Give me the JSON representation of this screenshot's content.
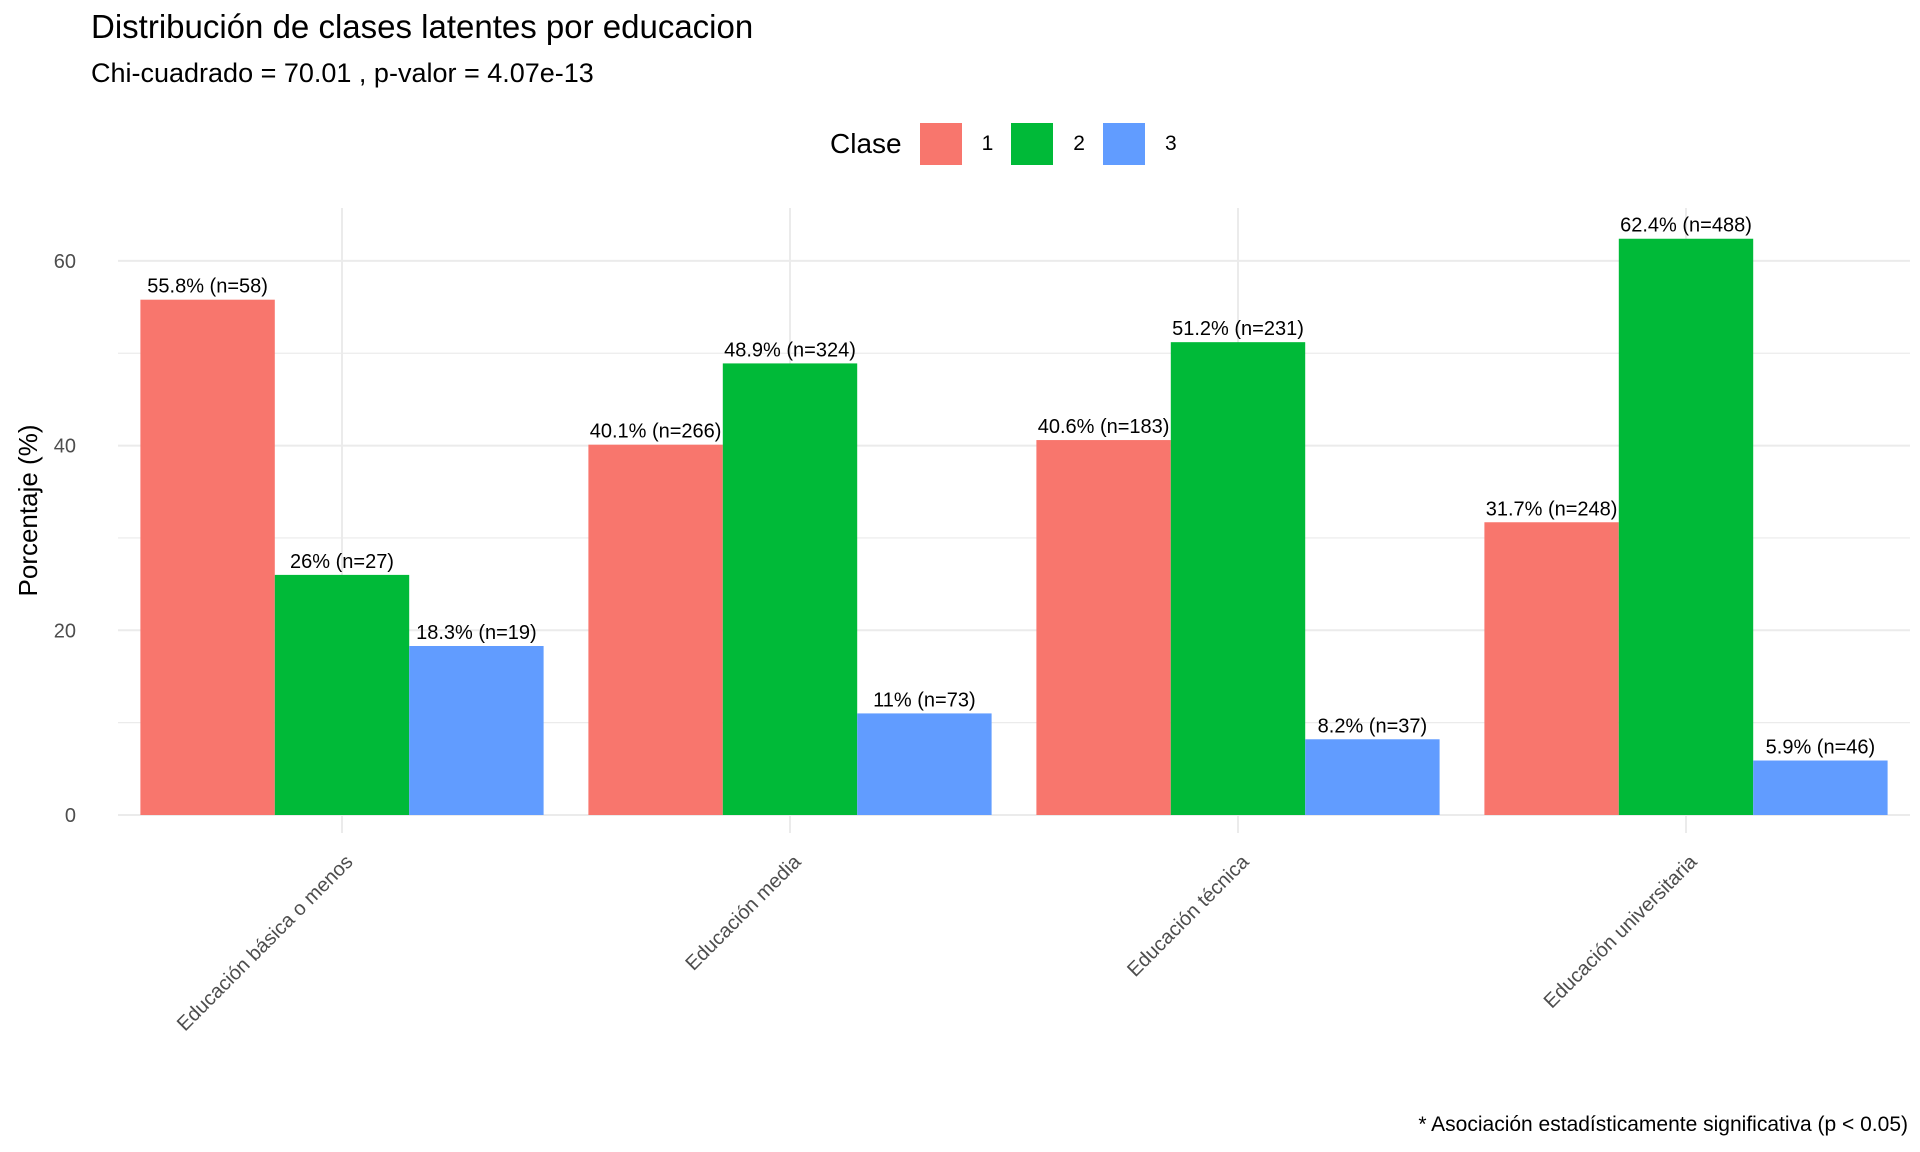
{
  "chart_data": {
    "type": "bar",
    "title": "Distribución de clases latentes por educacion",
    "subtitle": "Chi-cuadrado = 70.01 , p-valor = 4.07e-13",
    "xlabel": "",
    "ylabel": "Porcentaje (%)",
    "ylim": [
      0,
      65
    ],
    "yticks": [
      0,
      20,
      40,
      60
    ],
    "grid": true,
    "legend_title": "Clase",
    "legend_position": "top",
    "categories": [
      "Educación básica o menos",
      "Educación media",
      "Educación técnica",
      "Educación universitaria"
    ],
    "series": [
      {
        "name": "1",
        "color": "#F8766D",
        "values": [
          55.8,
          40.1,
          40.6,
          31.7
        ],
        "labels": [
          "55.8% (n=58)",
          "40.1% (n=266)",
          "40.6% (n=183)",
          "31.7% (n=248)"
        ]
      },
      {
        "name": "2",
        "color": "#00BA38",
        "values": [
          26,
          48.9,
          51.2,
          62.4
        ],
        "labels": [
          "26% (n=27)",
          "48.9% (n=324)",
          "51.2% (n=231)",
          "62.4% (n=488)"
        ]
      },
      {
        "name": "3",
        "color": "#619CFF",
        "values": [
          18.3,
          11,
          8.2,
          5.9
        ],
        "labels": [
          "18.3% (n=19)",
          "11% (n=73)",
          "8.2% (n=37)",
          "5.9% (n=46)"
        ]
      }
    ],
    "caption": "* Asociación estadísticamente significativa (p < 0.05)"
  }
}
